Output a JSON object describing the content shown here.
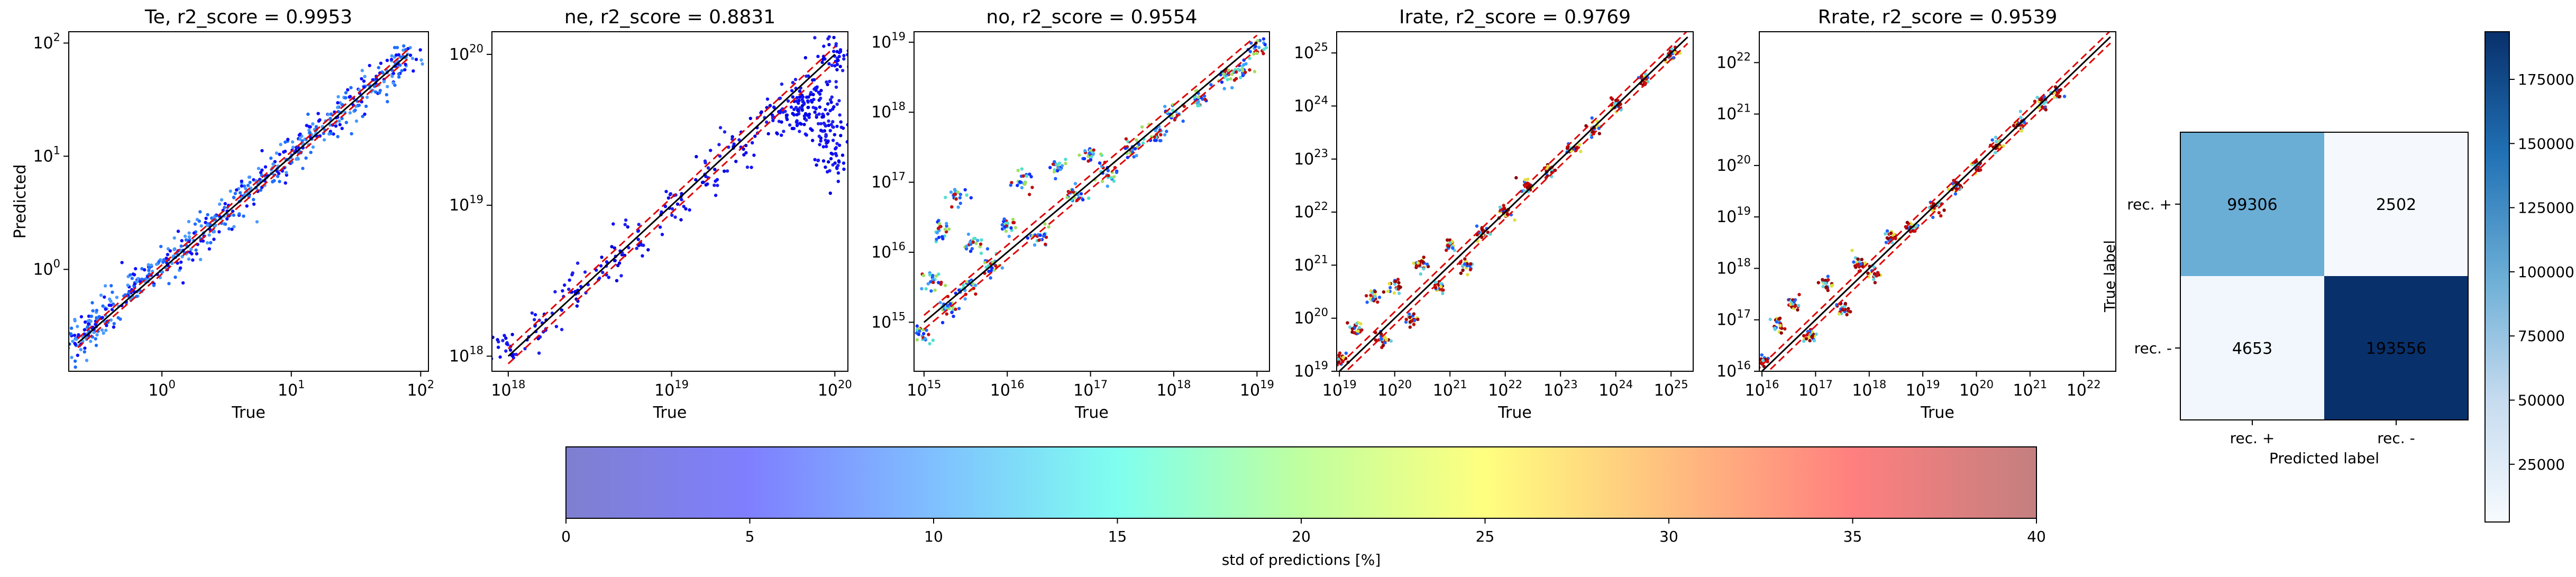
{
  "chart_data": [
    {
      "type": "scatter",
      "title": "Te, r2_score = 0.9953",
      "xlabel": "True",
      "ylabel": "Predicted",
      "scale": "log",
      "xlim_exp": [
        -0.72,
        2.06
      ],
      "ylim_exp": [
        -0.9,
        2.1
      ],
      "xticks": [
        {
          "exp": 0,
          "label": "10",
          "sup": "0"
        },
        {
          "exp": 1,
          "label": "10",
          "sup": "1"
        },
        {
          "exp": 2,
          "label": "10",
          "sup": "2"
        }
      ],
      "yticks": [
        {
          "exp": 0,
          "label": "10",
          "sup": "0"
        },
        {
          "exp": 1,
          "label": "10",
          "sup": "1"
        },
        {
          "exp": 2,
          "label": "10",
          "sup": "2"
        }
      ],
      "diagonal": {
        "x_exp": [
          -0.65,
          1.9
        ],
        "y_exp": [
          -0.65,
          1.9
        ]
      },
      "band_offset_exp": 0.04,
      "colors": [
        "#1e6eff",
        "#1010ff",
        "#4a9aff"
      ],
      "points": [
        [
          -0.65,
          -0.68
        ],
        [
          -0.6,
          -0.56
        ],
        [
          -0.55,
          -0.53
        ],
        [
          -0.5,
          -0.47
        ],
        [
          -0.4,
          -0.38
        ],
        [
          -0.3,
          -0.22
        ],
        [
          -0.2,
          -0.12
        ],
        [
          -0.1,
          -0.02
        ],
        [
          0,
          0.02
        ],
        [
          0.1,
          0.12
        ],
        [
          0.2,
          0.2
        ],
        [
          0.3,
          0.32
        ],
        [
          0.4,
          0.42
        ],
        [
          0.5,
          0.48
        ],
        [
          0.6,
          0.6
        ],
        [
          0.7,
          0.72
        ],
        [
          0.8,
          0.82
        ],
        [
          0.9,
          0.88
        ],
        [
          1,
          1.0
        ],
        [
          1.1,
          1.1
        ],
        [
          1.2,
          1.22
        ],
        [
          1.3,
          1.3
        ],
        [
          1.4,
          1.42
        ],
        [
          1.5,
          1.48
        ],
        [
          1.6,
          1.6
        ],
        [
          1.7,
          1.7
        ],
        [
          1.8,
          1.78
        ],
        [
          1.9,
          1.88
        ]
      ]
    },
    {
      "type": "scatter",
      "title": "ne, r2_score = 0.8831",
      "xlabel": "True",
      "ylabel": "",
      "scale": "log",
      "xlim_exp": [
        17.9,
        20.08
      ],
      "ylim_exp": [
        17.9,
        20.15
      ],
      "xticks": [
        {
          "exp": 18,
          "label": "10",
          "sup": "18"
        },
        {
          "exp": 19,
          "label": "10",
          "sup": "19"
        },
        {
          "exp": 20,
          "label": "10",
          "sup": "20"
        }
      ],
      "yticks": [
        {
          "exp": 18,
          "label": "10",
          "sup": "18"
        },
        {
          "exp": 19,
          "label": "10",
          "sup": "19"
        },
        {
          "exp": 20,
          "label": "10",
          "sup": "20"
        }
      ],
      "diagonal": {
        "x_exp": [
          18,
          20
        ],
        "y_exp": [
          18,
          20
        ]
      },
      "band_offset_exp": 0.05,
      "colors": [
        "#1010ff",
        "#2020f0",
        "#0000e0"
      ],
      "points": [
        [
          18.0,
          18.05
        ],
        [
          18.2,
          18.22
        ],
        [
          18.4,
          18.42
        ],
        [
          18.6,
          18.6
        ],
        [
          18.8,
          18.8
        ],
        [
          19.0,
          19.0
        ],
        [
          19.2,
          19.2
        ],
        [
          19.4,
          19.38
        ],
        [
          19.6,
          19.58
        ],
        [
          19.7,
          19.62
        ],
        [
          19.75,
          19.55
        ],
        [
          19.8,
          19.7
        ],
        [
          19.85,
          19.62
        ],
        [
          19.9,
          19.78
        ],
        [
          19.95,
          19.6
        ],
        [
          19.98,
          19.4
        ],
        [
          20.0,
          19.95
        ],
        [
          20.0,
          19.3
        ],
        [
          19.98,
          20.0
        ],
        [
          19.96,
          19.5
        ]
      ]
    },
    {
      "type": "scatter",
      "title": "no, r2_score = 0.9554",
      "xlabel": "True",
      "ylabel": "",
      "scale": "log",
      "xlim_exp": [
        14.88,
        19.15
      ],
      "ylim_exp": [
        14.3,
        19.15
      ],
      "xticks": [
        {
          "exp": 15,
          "label": "10",
          "sup": "15"
        },
        {
          "exp": 16,
          "label": "10",
          "sup": "16"
        },
        {
          "exp": 17,
          "label": "10",
          "sup": "17"
        },
        {
          "exp": 18,
          "label": "10",
          "sup": "18"
        },
        {
          "exp": 19,
          "label": "10",
          "sup": "19"
        }
      ],
      "yticks": [
        {
          "exp": 15,
          "label": "10",
          "sup": "15"
        },
        {
          "exp": 16,
          "label": "10",
          "sup": "16"
        },
        {
          "exp": 17,
          "label": "10",
          "sup": "17"
        },
        {
          "exp": 18,
          "label": "10",
          "sup": "18"
        },
        {
          "exp": 19,
          "label": "10",
          "sup": "19"
        }
      ],
      "diagonal": {
        "x_exp": [
          15,
          19
        ],
        "y_exp": [
          15,
          19
        ]
      },
      "band_offset_exp": 0.1,
      "colors": [
        "#2060ff",
        "#40a0ff",
        "#50e0d0",
        "#a0e060",
        "#c01010",
        "#1030ff"
      ],
      "points": [
        [
          15.0,
          14.8
        ],
        [
          15.1,
          15.6
        ],
        [
          15.2,
          16.3
        ],
        [
          15.3,
          15.2
        ],
        [
          15.4,
          16.8
        ],
        [
          15.5,
          15.5
        ],
        [
          15.6,
          16.1
        ],
        [
          15.8,
          15.8
        ],
        [
          16.0,
          16.4
        ],
        [
          16.2,
          17.0
        ],
        [
          16.4,
          16.2
        ],
        [
          16.6,
          17.2
        ],
        [
          16.8,
          16.8
        ],
        [
          17.0,
          17.4
        ],
        [
          17.2,
          17.1
        ],
        [
          17.5,
          17.5
        ],
        [
          17.8,
          17.7
        ],
        [
          18.0,
          18.0
        ],
        [
          18.3,
          18.2
        ],
        [
          18.6,
          18.5
        ],
        [
          18.8,
          18.6
        ],
        [
          19.0,
          18.9
        ]
      ]
    },
    {
      "type": "scatter",
      "title": "Irate, r2_score = 0.9769",
      "xlabel": "True",
      "ylabel": "",
      "scale": "log",
      "xlim_exp": [
        18.95,
        25.4
      ],
      "ylim_exp": [
        19.0,
        25.4
      ],
      "xticks": [
        {
          "exp": 19,
          "label": "10",
          "sup": "19"
        },
        {
          "exp": 20,
          "label": "10",
          "sup": "20"
        },
        {
          "exp": 21,
          "label": "10",
          "sup": "21"
        },
        {
          "exp": 22,
          "label": "10",
          "sup": "22"
        },
        {
          "exp": 23,
          "label": "10",
          "sup": "23"
        },
        {
          "exp": 24,
          "label": "10",
          "sup": "24"
        },
        {
          "exp": 25,
          "label": "10",
          "sup": "25"
        }
      ],
      "yticks": [
        {
          "exp": 19,
          "label": "10",
          "sup": "19"
        },
        {
          "exp": 20,
          "label": "10",
          "sup": "20"
        },
        {
          "exp": 21,
          "label": "10",
          "sup": "21"
        },
        {
          "exp": 22,
          "label": "10",
          "sup": "22"
        },
        {
          "exp": 23,
          "label": "10",
          "sup": "23"
        },
        {
          "exp": 24,
          "label": "10",
          "sup": "24"
        },
        {
          "exp": 25,
          "label": "10",
          "sup": "25"
        }
      ],
      "diagonal": {
        "x_exp": [
          19,
          25.3
        ],
        "y_exp": [
          19,
          25.3
        ]
      },
      "band_offset_exp": 0.12,
      "colors": [
        "#8b0000",
        "#a00000",
        "#c01010",
        "#e0e040",
        "#60d0e0",
        "#2060ff"
      ],
      "points": [
        [
          19.0,
          19.2
        ],
        [
          19.3,
          19.8
        ],
        [
          19.6,
          20.4
        ],
        [
          19.8,
          19.6
        ],
        [
          20.0,
          20.6
        ],
        [
          20.3,
          20.0
        ],
        [
          20.5,
          21.0
        ],
        [
          20.8,
          20.6
        ],
        [
          21.0,
          21.4
        ],
        [
          21.3,
          21.0
        ],
        [
          21.6,
          21.6
        ],
        [
          22.0,
          22.0
        ],
        [
          22.4,
          22.5
        ],
        [
          22.8,
          22.8
        ],
        [
          23.2,
          23.2
        ],
        [
          23.6,
          23.6
        ],
        [
          24.0,
          24.0
        ],
        [
          24.5,
          24.5
        ],
        [
          25.0,
          25.0
        ]
      ]
    },
    {
      "type": "scatter",
      "title": "Rrate, r2_score = 0.9539",
      "xlabel": "True",
      "ylabel": "",
      "scale": "log",
      "xlim_exp": [
        15.95,
        22.6
      ],
      "ylim_exp": [
        16.0,
        22.6
      ],
      "xticks": [
        {
          "exp": 16,
          "label": "10",
          "sup": "16"
        },
        {
          "exp": 17,
          "label": "10",
          "sup": "17"
        },
        {
          "exp": 18,
          "label": "10",
          "sup": "18"
        },
        {
          "exp": 19,
          "label": "10",
          "sup": "19"
        },
        {
          "exp": 20,
          "label": "10",
          "sup": "20"
        },
        {
          "exp": 21,
          "label": "10",
          "sup": "21"
        },
        {
          "exp": 22,
          "label": "10",
          "sup": "22"
        }
      ],
      "yticks": [
        {
          "exp": 16,
          "label": "10",
          "sup": "16"
        },
        {
          "exp": 17,
          "label": "10",
          "sup": "17"
        },
        {
          "exp": 18,
          "label": "10",
          "sup": "18"
        },
        {
          "exp": 19,
          "label": "10",
          "sup": "19"
        },
        {
          "exp": 20,
          "label": "10",
          "sup": "20"
        },
        {
          "exp": 21,
          "label": "10",
          "sup": "21"
        },
        {
          "exp": 22,
          "label": "10",
          "sup": "22"
        }
      ],
      "diagonal": {
        "x_exp": [
          16,
          22.5
        ],
        "y_exp": [
          16,
          22.5
        ]
      },
      "band_offset_exp": 0.12,
      "colors": [
        "#8b0000",
        "#a00000",
        "#c01010",
        "#e0e040",
        "#60d0e0",
        "#2060ff"
      ],
      "points": [
        [
          16.0,
          16.2
        ],
        [
          16.3,
          16.9
        ],
        [
          16.6,
          17.3
        ],
        [
          16.9,
          16.7
        ],
        [
          17.2,
          17.7
        ],
        [
          17.5,
          17.2
        ],
        [
          17.8,
          18.1
        ],
        [
          18.1,
          17.9
        ],
        [
          18.4,
          18.6
        ],
        [
          18.8,
          18.8
        ],
        [
          19.2,
          19.2
        ],
        [
          19.6,
          19.6
        ],
        [
          20.0,
          20.0
        ],
        [
          20.4,
          20.4
        ],
        [
          20.8,
          20.8
        ],
        [
          21.2,
          21.2
        ],
        [
          21.5,
          21.4
        ]
      ]
    },
    {
      "type": "heatmap",
      "title": "",
      "xlabel": "Predicted label",
      "ylabel": "True label",
      "row_labels": [
        "rec. +",
        "rec. -"
      ],
      "col_labels": [
        "rec. +",
        "rec. -"
      ],
      "values": [
        [
          99306,
          2502
        ],
        [
          4653,
          193556
        ]
      ],
      "cell_colors": [
        [
          "#6aaed6",
          "#f5f9fe"
        ],
        [
          "#f1f7fd",
          "#08306b"
        ]
      ],
      "text_colors": [
        [
          "#ffffff",
          "#08306b"
        ],
        [
          "#08306b",
          "#ffffff"
        ]
      ],
      "colorbar": {
        "ticks": [
          25000,
          50000,
          75000,
          100000,
          125000,
          150000,
          175000
        ],
        "tick_labels": [
          "25000",
          "50000",
          "75000",
          "100000",
          "125000",
          "150000",
          "175000"
        ],
        "range": [
          2502,
          193556
        ],
        "colors": [
          "#f7fbff",
          "#c6dbef",
          "#6baed6",
          "#2171b5",
          "#08306b"
        ]
      }
    }
  ],
  "std_colorbar": {
    "label": "std of predictions [%]",
    "ticks": [
      0,
      5,
      10,
      15,
      20,
      25,
      30,
      35,
      40
    ],
    "tick_labels": [
      "0",
      "5",
      "10",
      "15",
      "20",
      "25",
      "30",
      "35",
      "40"
    ],
    "range": [
      0,
      40
    ],
    "colors": [
      "#7f7fd0",
      "#7f7fff",
      "#7fbfff",
      "#7fffef",
      "#bfff9f",
      "#ffff7f",
      "#ffbf7f",
      "#ff7f7f",
      "#c47f7f"
    ]
  }
}
